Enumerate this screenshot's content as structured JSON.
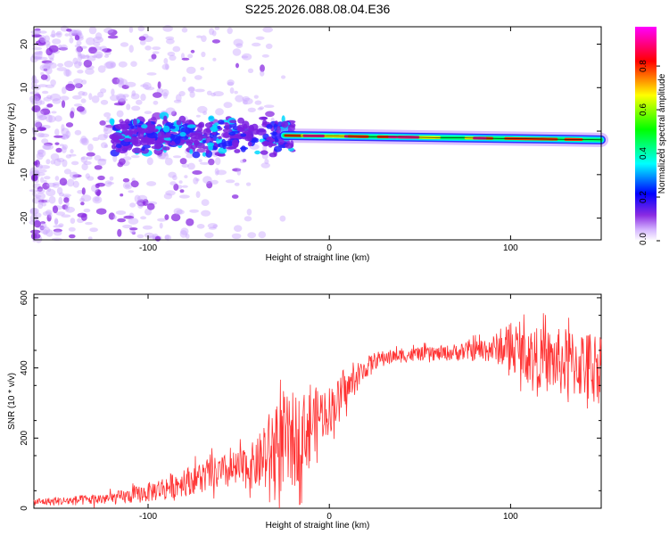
{
  "figure_title": "S225.2026.088.08.04.E36",
  "chart_data": [
    {
      "type": "heatmap",
      "title": "S225.2026.088.08.04.E36",
      "xlabel": "Height of straight line (km)",
      "ylabel": "Frequency (Hz)",
      "xlim": [
        -163,
        150
      ],
      "ylim": [
        -25,
        24
      ],
      "xticks": [
        -100,
        0,
        100
      ],
      "yticks": [
        -20,
        -10,
        0,
        10,
        20
      ],
      "colorbar": {
        "label": "Normalized spectral amplitude",
        "range": [
          0,
          0.98
        ],
        "ticks": [
          0.0,
          0.2,
          0.4,
          0.6,
          0.8
        ],
        "tick_labels": [
          "0.0",
          "0.2",
          "0.4",
          "0.6",
          "0.8"
        ],
        "colors": [
          "#ffffff",
          "#b070ff",
          "#0000ff",
          "#00ffff",
          "#00ff00",
          "#ffff00",
          "#ff0000",
          "#ff00ff"
        ]
      },
      "features": [
        {
          "name": "noise_scatter",
          "x_range": [
            -163,
            -25
          ],
          "freq_range": [
            -25,
            24
          ],
          "amplitude": 0.1
        },
        {
          "name": "noisy_band",
          "x_range": [
            -120,
            -20
          ],
          "freq_center": -1,
          "freq_width": 6,
          "amplitude": 0.3
        },
        {
          "name": "signal_line",
          "x_range": [
            -25,
            150
          ],
          "freq_start": -1,
          "freq_end": -2,
          "amplitude": 0.9
        }
      ]
    },
    {
      "type": "line",
      "xlabel": "Height of straight line (km)",
      "ylabel": "SNR (10 * v/v)",
      "xlim": [
        -163,
        150
      ],
      "ylim": [
        0,
        610
      ],
      "xticks": [
        -100,
        0,
        100
      ],
      "yticks": [
        0,
        200,
        400,
        600
      ],
      "color": "#ff3333",
      "series": [
        {
          "name": "SNR",
          "x": [
            -163,
            -150,
            -140,
            -130,
            -120,
            -110,
            -100,
            -90,
            -80,
            -70,
            -60,
            -50,
            -40,
            -35,
            -30,
            -25,
            -20,
            -15,
            -10,
            -5,
            0,
            5,
            10,
            15,
            20,
            25,
            30,
            40,
            50,
            60,
            70,
            80,
            90,
            100,
            110,
            120,
            130,
            140,
            150
          ],
          "y": [
            18,
            20,
            22,
            25,
            28,
            35,
            45,
            60,
            75,
            90,
            100,
            110,
            125,
            150,
            170,
            180,
            190,
            210,
            240,
            270,
            280,
            310,
            340,
            370,
            400,
            420,
            430,
            435,
            440,
            440,
            445,
            450,
            455,
            455,
            440,
            420,
            415,
            410,
            410
          ]
        }
      ],
      "noise_amplitude": [
        10,
        12,
        14,
        16,
        18,
        22,
        28,
        35,
        40,
        45,
        50,
        55,
        70,
        110,
        130,
        140,
        140,
        120,
        100,
        80,
        70,
        60,
        50,
        40,
        30,
        25,
        20,
        20,
        20,
        20,
        25,
        30,
        40,
        60,
        80,
        90,
        100,
        100,
        95
      ]
    }
  ]
}
